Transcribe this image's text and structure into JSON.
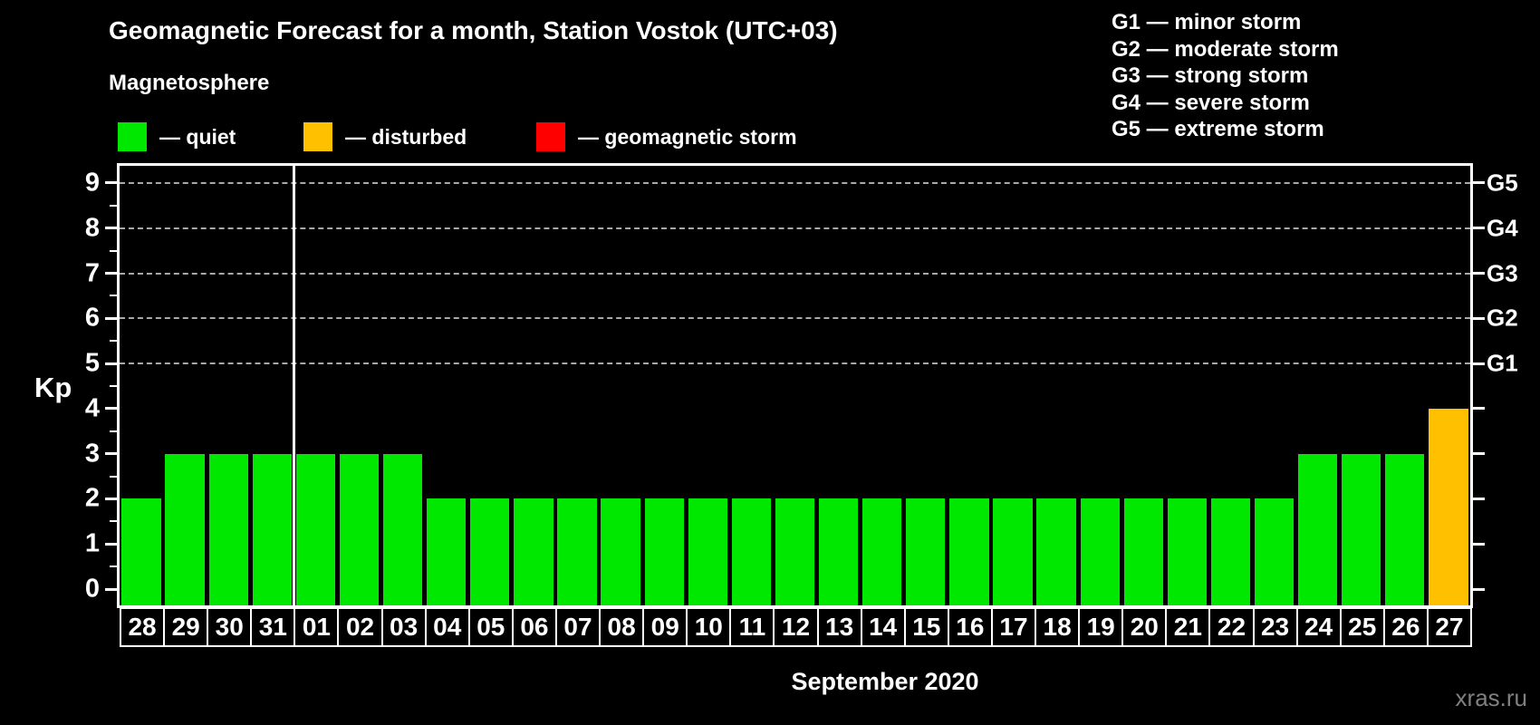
{
  "header": {
    "title": "Geomagnetic Forecast for a month, Station Vostok (UTC+03)",
    "subtitle": "Magnetosphere"
  },
  "legend": {
    "items": [
      {
        "name": "quiet",
        "label": "— quiet",
        "color": "#00e800"
      },
      {
        "name": "disturbed",
        "label": "— disturbed",
        "color": "#ffc000"
      },
      {
        "name": "storm",
        "label": "— geomagnetic storm",
        "color": "#ff0000"
      }
    ]
  },
  "g_legend": {
    "items": [
      "G1 — minor storm",
      "G2 — moderate storm",
      "G3 — strong storm",
      "G4 — severe storm",
      "G5 — extreme storm"
    ]
  },
  "chart_data": {
    "type": "bar",
    "title": "Geomagnetic Forecast for a month, Station Vostok (UTC+03)",
    "categories": [
      "28",
      "29",
      "30",
      "31",
      "01",
      "02",
      "03",
      "04",
      "05",
      "06",
      "07",
      "08",
      "09",
      "10",
      "11",
      "12",
      "13",
      "14",
      "15",
      "16",
      "17",
      "18",
      "19",
      "20",
      "21",
      "22",
      "23",
      "24",
      "25",
      "26",
      "27"
    ],
    "values": [
      2,
      3,
      3,
      3,
      3,
      3,
      3,
      2,
      2,
      2,
      2,
      2,
      2,
      2,
      2,
      2,
      2,
      2,
      2,
      2,
      2,
      2,
      2,
      2,
      2,
      2,
      2,
      3,
      3,
      3,
      4
    ],
    "bar_status": [
      "quiet",
      "quiet",
      "quiet",
      "quiet",
      "quiet",
      "quiet",
      "quiet",
      "quiet",
      "quiet",
      "quiet",
      "quiet",
      "quiet",
      "quiet",
      "quiet",
      "quiet",
      "quiet",
      "quiet",
      "quiet",
      "quiet",
      "quiet",
      "quiet",
      "quiet",
      "quiet",
      "quiet",
      "quiet",
      "quiet",
      "quiet",
      "quiet",
      "quiet",
      "quiet",
      "disturbed"
    ],
    "status_colors": {
      "quiet": "#00e800",
      "disturbed": "#ffc000",
      "storm": "#ff0000"
    },
    "ylabel": "Kp",
    "xlabel": "September 2020",
    "ylim": [
      0,
      9
    ],
    "yticks": [
      0,
      1,
      2,
      3,
      4,
      5,
      6,
      7,
      8,
      9
    ],
    "gridlines": [
      5,
      6,
      7,
      8,
      9
    ],
    "right_axis_labels": [
      {
        "value": 5,
        "label": "G1"
      },
      {
        "value": 6,
        "label": "G2"
      },
      {
        "value": 7,
        "label": "G3"
      },
      {
        "value": 8,
        "label": "G4"
      },
      {
        "value": 9,
        "label": "G5"
      }
    ],
    "month_boundary_after_index": 3,
    "legend_position": "top",
    "grid": "dashed-horizontal-storm-levels-only"
  },
  "footer": {
    "watermark": "xras.ru"
  }
}
